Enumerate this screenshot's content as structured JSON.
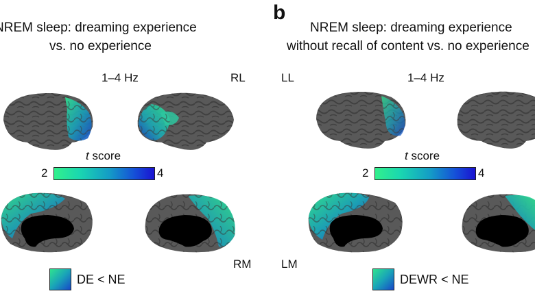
{
  "panel_a": {
    "title_line1": "NREM sleep: dreaming experience",
    "title_line2": "vs. no experience",
    "frequency": "1–4 Hz",
    "view_rl": "RL",
    "view_rm": "RM",
    "cbar_label_var": "t",
    "cbar_label_rest": " score",
    "cbar_min": "2",
    "cbar_max": "4",
    "legend": "DE < NE"
  },
  "panel_b": {
    "letter": "b",
    "title_line1": "NREM sleep: dreaming experience",
    "title_line2": "without recall of content vs. no experience",
    "frequency": "1–4 Hz",
    "view_ll": "LL",
    "view_lm": "LM",
    "cbar_label_var": "t",
    "cbar_label_rest": " score",
    "cbar_min": "2",
    "cbar_max": "4",
    "legend": "DEWR < NE"
  },
  "colors": {
    "cortex": "#555555",
    "sulci": "#3a3a3a",
    "medial_wall": "#000000",
    "low": "#32f08c",
    "high": "#1a12d2"
  }
}
